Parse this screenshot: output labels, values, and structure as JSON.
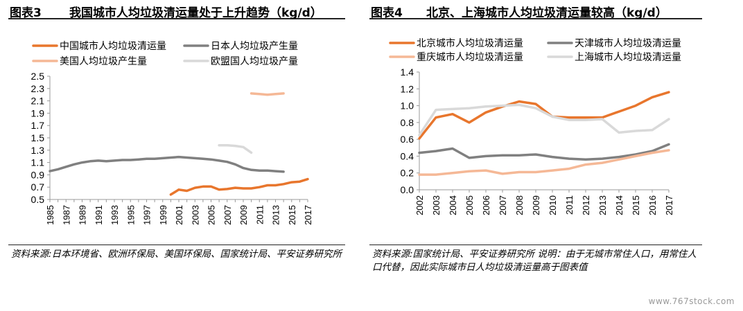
{
  "watermark": "www.767stock.com",
  "chart_data": [
    {
      "type": "line",
      "figure_number": "图表3",
      "title": "我国城市人均垃圾清运量处于上升趋势（kg/d）",
      "source": "资料来源:日本环境省、欧洲环保局、美国环保局、国家统计局、平安证券研究所",
      "xlabel": "",
      "ylabel": "",
      "ylim": [
        0.5,
        2.5
      ],
      "yticks": [
        "0.5",
        "0.7",
        "0.9",
        "1.1",
        "1.3",
        "1.5",
        "1.7",
        "1.9",
        "2.1",
        "2.3",
        "2.5"
      ],
      "xticks": [
        "1985",
        "1987",
        "1989",
        "1991",
        "1993",
        "1995",
        "1997",
        "1999",
        "2001",
        "2003",
        "2005",
        "2007",
        "2009",
        "2011",
        "2013",
        "2015",
        "2017"
      ],
      "grid": false,
      "legend_position": "top",
      "series": [
        {
          "name": "中国城市人均垃圾清运量",
          "color": "#e8762d",
          "x": [
            2000,
            2001,
            2002,
            2003,
            2004,
            2005,
            2006,
            2007,
            2008,
            2009,
            2010,
            2011,
            2012,
            2013,
            2014,
            2015,
            2016,
            2017
          ],
          "values": [
            0.58,
            0.66,
            0.64,
            0.69,
            0.71,
            0.71,
            0.66,
            0.67,
            0.69,
            0.68,
            0.68,
            0.7,
            0.73,
            0.73,
            0.75,
            0.78,
            0.79,
            0.83
          ]
        },
        {
          "name": "日本人均垃圾产生量",
          "color": "#808080",
          "x": [
            1985,
            1986,
            1987,
            1988,
            1989,
            1990,
            1991,
            1992,
            1993,
            1994,
            1995,
            1996,
            1997,
            1998,
            1999,
            2000,
            2001,
            2002,
            2003,
            2004,
            2005,
            2006,
            2007,
            2008,
            2009,
            2010,
            2011,
            2012,
            2013,
            2014
          ],
          "values": [
            0.96,
            0.99,
            1.03,
            1.07,
            1.1,
            1.12,
            1.13,
            1.12,
            1.13,
            1.14,
            1.14,
            1.15,
            1.16,
            1.16,
            1.17,
            1.18,
            1.19,
            1.18,
            1.17,
            1.16,
            1.15,
            1.13,
            1.11,
            1.07,
            1.01,
            0.98,
            0.97,
            0.97,
            0.96,
            0.95
          ]
        },
        {
          "name": "美国人均垃圾产生量",
          "color": "#f5b896",
          "x": [
            2010,
            2011,
            2012,
            2013,
            2014
          ],
          "values": [
            2.22,
            2.21,
            2.2,
            2.21,
            2.22
          ]
        },
        {
          "name": "欧盟国人均垃圾产量",
          "color": "#d9d9d9",
          "x": [
            2006,
            2007,
            2008,
            2009,
            2010
          ],
          "values": [
            1.38,
            1.38,
            1.37,
            1.35,
            1.26
          ]
        }
      ]
    },
    {
      "type": "line",
      "figure_number": "图表4",
      "title": "北京、上海城市人均垃圾清运量较高（kg/d）",
      "source": "资料来源:国家统计局、平安证券研究所 说明：由于无城市常住人口，用常住人口代替，因此实际城市日人均垃圾清运量高于图表值",
      "xlabel": "",
      "ylabel": "",
      "ylim": [
        0.0,
        1.4
      ],
      "yticks": [
        "0.0",
        "0.2",
        "0.4",
        "0.6",
        "0.8",
        "1.0",
        "1.2",
        "1.4"
      ],
      "xticks": [
        "2002",
        "2003",
        "2004",
        "2005",
        "2006",
        "2007",
        "2008",
        "2009",
        "2010",
        "2011",
        "2012",
        "2013",
        "2014",
        "2015",
        "2016",
        "2017"
      ],
      "grid": false,
      "legend_position": "top",
      "series": [
        {
          "name": "北京城市人均垃圾清运量",
          "color": "#e8762d",
          "x": [
            2002,
            2003,
            2004,
            2005,
            2006,
            2007,
            2008,
            2009,
            2010,
            2011,
            2012,
            2013,
            2014,
            2015,
            2016,
            2017
          ],
          "values": [
            0.61,
            0.86,
            0.9,
            0.8,
            0.92,
            0.99,
            1.05,
            1.02,
            0.87,
            0.86,
            0.86,
            0.86,
            0.93,
            1.0,
            1.1,
            1.16
          ]
        },
        {
          "name": "天津城市人均垃圾清运量",
          "color": "#808080",
          "x": [
            2002,
            2003,
            2004,
            2005,
            2006,
            2007,
            2008,
            2009,
            2010,
            2011,
            2012,
            2013,
            2014,
            2015,
            2016,
            2017
          ],
          "values": [
            0.44,
            0.46,
            0.49,
            0.38,
            0.4,
            0.41,
            0.41,
            0.42,
            0.39,
            0.37,
            0.36,
            0.37,
            0.39,
            0.42,
            0.46,
            0.54
          ]
        },
        {
          "name": "重庆城市人均垃圾清运量",
          "color": "#f5b896",
          "x": [
            2002,
            2003,
            2004,
            2005,
            2006,
            2007,
            2008,
            2009,
            2010,
            2011,
            2012,
            2013,
            2014,
            2015,
            2016,
            2017
          ],
          "values": [
            0.18,
            0.18,
            0.2,
            0.22,
            0.23,
            0.19,
            0.21,
            0.21,
            0.23,
            0.25,
            0.3,
            0.32,
            0.36,
            0.4,
            0.44,
            0.47
          ]
        },
        {
          "name": "上海城市人均垃圾清运量",
          "color": "#d9d9d9",
          "x": [
            2002,
            2003,
            2004,
            2005,
            2006,
            2007,
            2008,
            2009,
            2010,
            2011,
            2012,
            2013,
            2014,
            2015,
            2016,
            2017
          ],
          "values": [
            0.65,
            0.95,
            0.96,
            0.97,
            0.99,
            1.0,
            1.01,
            0.97,
            0.87,
            0.83,
            0.83,
            0.84,
            0.68,
            0.7,
            0.71,
            0.84
          ]
        }
      ]
    }
  ]
}
